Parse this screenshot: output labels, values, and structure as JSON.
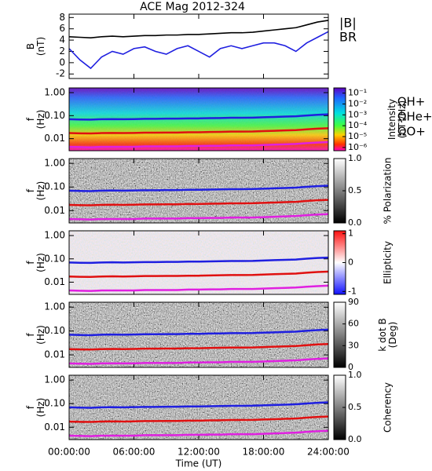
{
  "chart_data": [
    {
      "type": "line",
      "title": "ACE Mag 2012-324",
      "ylabel": [
        "B",
        "(nT)"
      ],
      "x": [
        0,
        1,
        2,
        3,
        4,
        5,
        6,
        7,
        8,
        9,
        10,
        11,
        12,
        13,
        14,
        15,
        16,
        17,
        18,
        19,
        20,
        21,
        22,
        23,
        24
      ],
      "xlim": [
        0,
        24
      ],
      "ylim": [
        -2.8,
        8.6
      ],
      "yticks": [
        -2,
        0,
        2,
        4,
        6,
        8
      ],
      "series": [
        {
          "name": "|B|",
          "color": "#000000",
          "values": [
            4.6,
            4.5,
            4.4,
            4.6,
            4.7,
            4.6,
            4.7,
            4.8,
            4.8,
            4.9,
            4.9,
            5.0,
            5.0,
            5.1,
            5.2,
            5.3,
            5.3,
            5.4,
            5.6,
            5.8,
            6.0,
            6.2,
            6.7,
            7.2,
            7.5
          ]
        },
        {
          "name": "BR",
          "color": "#1f1fe0",
          "values": [
            2.5,
            0.5,
            -1,
            1,
            2,
            1.5,
            2.5,
            2.8,
            2,
            1.5,
            2.5,
            3,
            2,
            1,
            2.5,
            3,
            2.5,
            3,
            3.5,
            3.5,
            3,
            2,
            3.5,
            4.5,
            5.5
          ]
        }
      ]
    },
    {
      "type": "spectrogram",
      "colormap": "rainbow",
      "ylabel": [
        "f",
        "(Hz)"
      ],
      "log_y": true,
      "xlim": [
        0,
        24
      ],
      "ylim": [
        0.003,
        1.6
      ],
      "yticks": [
        {
          "value": 0.01,
          "label": "0.01"
        },
        {
          "value": 0.1,
          "label": "0.10"
        },
        {
          "value": 1,
          "label": "1.00"
        }
      ],
      "x": [
        0,
        1,
        2,
        3,
        4,
        5,
        6,
        7,
        8,
        9,
        10,
        11,
        12,
        13,
        14,
        15,
        16,
        17,
        18,
        19,
        20,
        21,
        22,
        23,
        24
      ],
      "series": [
        {
          "name": "ΩH+",
          "color": "#1f1fe0",
          "values": [
            0.07,
            0.068,
            0.067,
            0.07,
            0.071,
            0.07,
            0.071,
            0.073,
            0.073,
            0.074,
            0.074,
            0.076,
            0.076,
            0.078,
            0.079,
            0.081,
            0.081,
            0.082,
            0.085,
            0.088,
            0.091,
            0.094,
            0.102,
            0.109,
            0.114
          ]
        },
        {
          "name": "ΩHe+",
          "color": "#e01010",
          "values": [
            0.0175,
            0.017,
            0.0168,
            0.0175,
            0.0178,
            0.0175,
            0.0178,
            0.0183,
            0.0183,
            0.0185,
            0.0185,
            0.019,
            0.019,
            0.0195,
            0.0198,
            0.0203,
            0.0203,
            0.0205,
            0.0213,
            0.022,
            0.0228,
            0.0235,
            0.0255,
            0.0273,
            0.0285
          ]
        },
        {
          "name": "ΩO+",
          "color": "#e020e0",
          "values": [
            0.0044,
            0.0043,
            0.0042,
            0.0044,
            0.0044,
            0.0044,
            0.0044,
            0.0046,
            0.0046,
            0.0046,
            0.0046,
            0.0048,
            0.0048,
            0.0049,
            0.0049,
            0.0051,
            0.0051,
            0.0051,
            0.0053,
            0.0055,
            0.0057,
            0.0059,
            0.0064,
            0.0068,
            0.0071
          ]
        }
      ],
      "colorbar": {
        "label": [
          "Intensity",
          "(nT²/Hz)"
        ],
        "log": true,
        "lim": [
          5e-07,
          0.3
        ],
        "ticks": [
          {
            "value": 0.1,
            "label": "10⁻¹"
          },
          {
            "value": 0.01,
            "label": "10⁻²"
          },
          {
            "value": 0.001,
            "label": "10⁻³"
          },
          {
            "value": 0.0001,
            "label": "10⁻⁴"
          },
          {
            "value": 1e-05,
            "label": "10⁻⁵"
          },
          {
            "value": 1e-06,
            "label": "10⁻⁶"
          }
        ]
      }
    },
    {
      "type": "spectrogram",
      "colormap": "gray",
      "ylabel": [
        "f",
        "(Hz)"
      ],
      "log_y": true,
      "xlim": [
        0,
        24
      ],
      "ylim": [
        0.003,
        1.6
      ],
      "yticks": [
        {
          "value": 0.01,
          "label": "0.01"
        },
        {
          "value": 0.1,
          "label": "0.10"
        },
        {
          "value": 1,
          "label": "1.00"
        }
      ],
      "colorbar": {
        "label": [
          "% Polarization"
        ],
        "lim": [
          0,
          1
        ],
        "ticks": [
          {
            "value": 0,
            "label": "0.0"
          },
          {
            "value": 0.5,
            "label": "0.5"
          },
          {
            "value": 1,
            "label": "1.0"
          }
        ]
      }
    },
    {
      "type": "spectrogram",
      "colormap": "bwr",
      "ylabel": [
        "f",
        "(Hz)"
      ],
      "log_y": true,
      "xlim": [
        0,
        24
      ],
      "ylim": [
        0.003,
        1.6
      ],
      "yticks": [
        {
          "value": 0.01,
          "label": "0.01"
        },
        {
          "value": 0.1,
          "label": "0.10"
        },
        {
          "value": 1,
          "label": "1.00"
        }
      ],
      "colorbar": {
        "label": [
          "Ellipticity"
        ],
        "lim": [
          -1.1,
          1.1
        ],
        "ticks": [
          -1,
          0,
          1
        ]
      }
    },
    {
      "type": "spectrogram",
      "colormap": "gray",
      "ylabel": [
        "f",
        "(Hz)"
      ],
      "log_y": true,
      "xlim": [
        0,
        24
      ],
      "ylim": [
        0.003,
        1.6
      ],
      "yticks": [
        {
          "value": 0.01,
          "label": "0.01"
        },
        {
          "value": 0.1,
          "label": "0.10"
        },
        {
          "value": 1,
          "label": "1.00"
        }
      ],
      "colorbar": {
        "label": [
          "k dot B",
          "(Deg)"
        ],
        "lim": [
          0,
          90
        ],
        "ticks": [
          0,
          30,
          60,
          90
        ]
      }
    },
    {
      "type": "spectrogram",
      "colormap": "gray",
      "ylabel": [
        "f",
        "(Hz)"
      ],
      "log_y": true,
      "xlim": [
        0,
        24
      ],
      "ylim": [
        0.003,
        1.6
      ],
      "yticks": [
        {
          "value": 0.01,
          "label": "0.01"
        },
        {
          "value": 0.1,
          "label": "0.10"
        },
        {
          "value": 1,
          "label": "1.00"
        }
      ],
      "xlabel": "Time (UT)",
      "xticks": [
        {
          "value": 0,
          "label": "00:00:00"
        },
        {
          "value": 6,
          "label": "06:00:00"
        },
        {
          "value": 12,
          "label": "12:00:00"
        },
        {
          "value": 18,
          "label": "18:00:00"
        },
        {
          "value": 24,
          "label": "24:00:00"
        }
      ],
      "colorbar": {
        "label": [
          "Coherency"
        ],
        "lim": [
          0,
          1
        ],
        "ticks": [
          {
            "value": 0,
            "label": "0.0"
          },
          {
            "value": 0.5,
            "label": "0.5"
          },
          {
            "value": 1,
            "label": "1.0"
          }
        ]
      }
    }
  ]
}
